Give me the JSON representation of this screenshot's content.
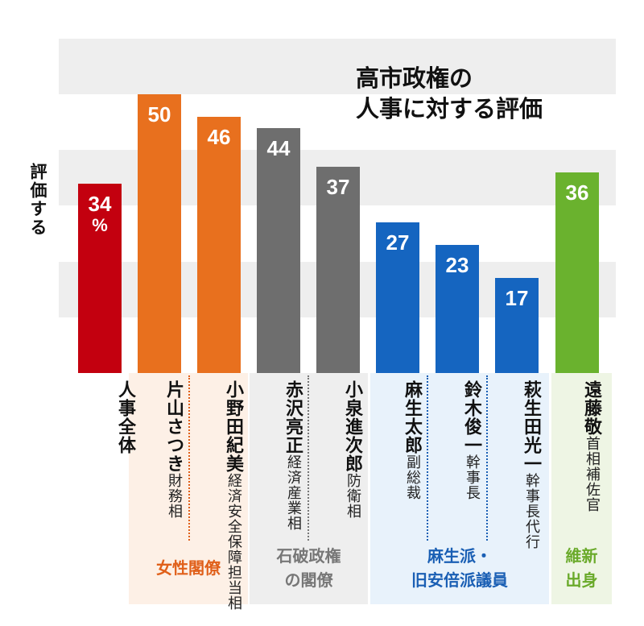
{
  "chart_data": {
    "type": "bar",
    "title_lines": [
      "高市政権の",
      "人事に対する評価"
    ],
    "ylabel": "評価する",
    "ylim": [
      0,
      60
    ],
    "grid": "alternating bands every 10",
    "unit": "%",
    "categories": [
      {
        "name": "人事全体",
        "title": "",
        "value": 34,
        "color": "#c3000f",
        "label": "34",
        "group": 0
      },
      {
        "name": "片山さつき",
        "title": "財務相",
        "value": 50,
        "color": "#e8701e",
        "label": "50",
        "group": 1
      },
      {
        "name": "小野田紀美",
        "title": "経済安全保障担当相",
        "value": 46,
        "color": "#e8701e",
        "label": "46",
        "group": 1
      },
      {
        "name": "赤沢亮正",
        "title": "経済産業相",
        "value": 44,
        "color": "#6e6e6e",
        "label": "44",
        "group": 2
      },
      {
        "name": "小泉進次郎",
        "title": "防衛相",
        "value": 37,
        "color": "#6e6e6e",
        "label": "37",
        "group": 2
      },
      {
        "name": "麻生太郎",
        "title": "副総裁",
        "value": 27,
        "color": "#1565c0",
        "label": "27",
        "group": 3
      },
      {
        "name": "鈴木俊一",
        "title": "幹事長",
        "value": 23,
        "color": "#1565c0",
        "label": "23",
        "group": 3
      },
      {
        "name": "萩生田光一",
        "title": "幹事長代行",
        "value": 17,
        "color": "#1565c0",
        "label": "17",
        "group": 3
      },
      {
        "name": "遠藤敬",
        "title": "首相補佐官",
        "value": 36,
        "color": "#6ab22e",
        "label": "36",
        "group": 4
      }
    ],
    "groups": [
      {
        "lines": [
          "女性閣僚"
        ],
        "color": "#e0601a",
        "bg": "#fdf0e6"
      },
      {
        "lines": [
          "石破政権",
          "の閣僚"
        ],
        "color": "#777777",
        "bg": "#eeeeee"
      },
      {
        "lines": [
          "麻生派・",
          "旧安倍派議員"
        ],
        "color": "#1a5fb4",
        "bg": "#e8f2fb"
      },
      {
        "lines": [
          "維新",
          "出身"
        ],
        "color": "#6aaa2a",
        "bg": "#eef5e4"
      }
    ]
  }
}
